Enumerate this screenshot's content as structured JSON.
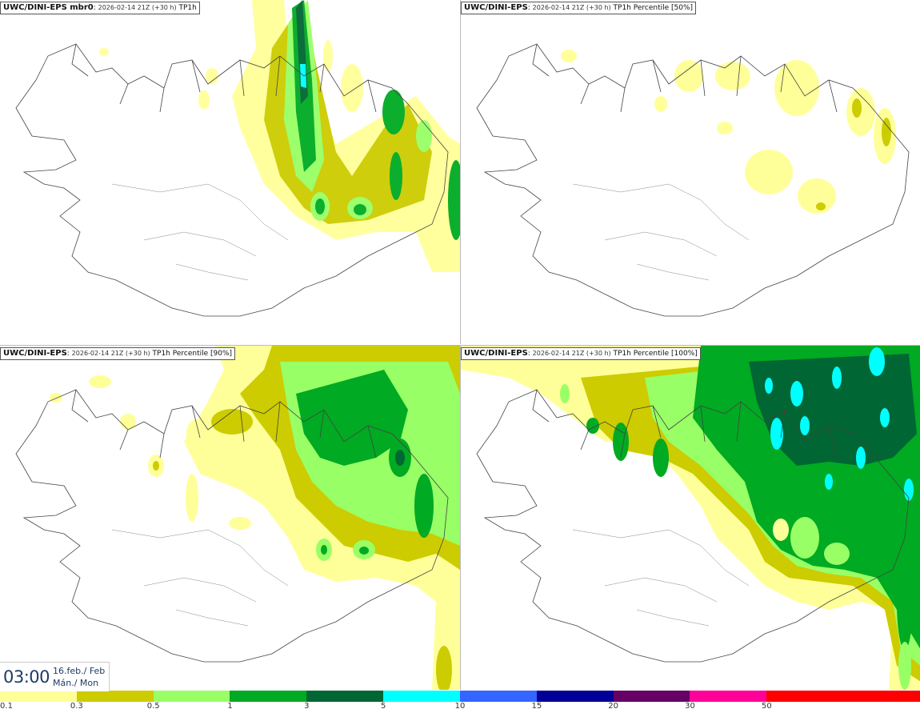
{
  "panels": [
    {
      "id": "p1",
      "model": "UWC/DINI-EPS mbr0",
      "run": "2026-02-14 21Z (+30 h)",
      "product": "TP1h"
    },
    {
      "id": "p2",
      "model": "UWC/DINI-EPS",
      "run": "2026-02-14 21Z (+30 h)",
      "product": "TP1h Percentile [50%]"
    },
    {
      "id": "p3",
      "model": "UWC/DINI-EPS",
      "run": "2026-02-14 21Z (+30 h)",
      "product": "TP1h Percentile [90%]"
    },
    {
      "id": "p4",
      "model": "UWC/DINI-EPS",
      "run": "2026-02-14 21Z (+30 h)",
      "product": "TP1h Percentile [100%]"
    }
  ],
  "valid_time": {
    "time": "03:00",
    "date_line1": "16.feb./ Feb",
    "date_line2": "Mán./ Mon"
  },
  "colorbar": {
    "colors": [
      "#ffff99",
      "#cccc00",
      "#99ff66",
      "#00aa22",
      "#006633",
      "#00ffff",
      "#3366ff",
      "#000099",
      "#660066",
      "#ff0099",
      "#ff0000",
      "#ff0000"
    ],
    "ticks": [
      "0.1",
      "0.3",
      "0.5",
      "1",
      "3",
      "5",
      "10",
      "15",
      "20",
      "30",
      "50"
    ]
  },
  "map_colors": {
    "light_yellow": "#ffff99",
    "olive": "#cccc00",
    "light_green": "#99ff66",
    "green": "#00aa22",
    "dark_green": "#006633",
    "cyan": "#00ffff",
    "coast": "#444444"
  }
}
